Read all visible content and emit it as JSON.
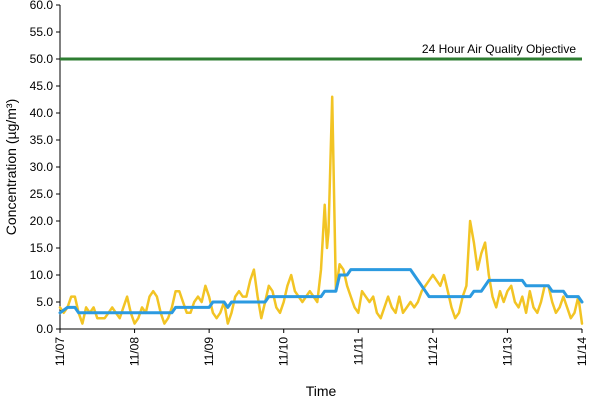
{
  "chart_data": {
    "type": "line",
    "xlabel": "Time",
    "ylabel": "Concentration (µg/m³)",
    "x_tick_labels": [
      "11/07",
      "11/08",
      "11/09",
      "11/10",
      "11/11",
      "11/12",
      "11/13",
      "11/14"
    ],
    "y_tick_labels": [
      "0.0",
      "5.0",
      "10.0",
      "15.0",
      "20.0",
      "25.0",
      "30.0",
      "35.0",
      "40.0",
      "45.0",
      "50.0",
      "55.0",
      "60.0"
    ],
    "xlim": [
      0,
      7
    ],
    "ylim": [
      0,
      60
    ],
    "grid": false,
    "objective": {
      "label": "24 Hour Air Quality Objective",
      "value": 50,
      "color": "#2e7d32"
    },
    "series": [
      {
        "color": "#f2c424",
        "points": [
          [
            0.0,
            4
          ],
          [
            0.05,
            3
          ],
          [
            0.1,
            4
          ],
          [
            0.15,
            6
          ],
          [
            0.2,
            6
          ],
          [
            0.25,
            3
          ],
          [
            0.3,
            1
          ],
          [
            0.35,
            4
          ],
          [
            0.4,
            3
          ],
          [
            0.45,
            4
          ],
          [
            0.5,
            2
          ],
          [
            0.55,
            2
          ],
          [
            0.6,
            2
          ],
          [
            0.65,
            3
          ],
          [
            0.7,
            4
          ],
          [
            0.75,
            3
          ],
          [
            0.8,
            2
          ],
          [
            0.85,
            4
          ],
          [
            0.9,
            6
          ],
          [
            0.95,
            3
          ],
          [
            1.0,
            1
          ],
          [
            1.05,
            2
          ],
          [
            1.1,
            4
          ],
          [
            1.15,
            3
          ],
          [
            1.2,
            6
          ],
          [
            1.25,
            7
          ],
          [
            1.3,
            6
          ],
          [
            1.35,
            3
          ],
          [
            1.4,
            1
          ],
          [
            1.45,
            2
          ],
          [
            1.5,
            4
          ],
          [
            1.55,
            7
          ],
          [
            1.6,
            7
          ],
          [
            1.65,
            5
          ],
          [
            1.7,
            3
          ],
          [
            1.75,
            3
          ],
          [
            1.8,
            5
          ],
          [
            1.85,
            6
          ],
          [
            1.9,
            5
          ],
          [
            1.95,
            8
          ],
          [
            2.0,
            6
          ],
          [
            2.05,
            3
          ],
          [
            2.1,
            2
          ],
          [
            2.15,
            3
          ],
          [
            2.2,
            5
          ],
          [
            2.25,
            1
          ],
          [
            2.3,
            3
          ],
          [
            2.35,
            6
          ],
          [
            2.4,
            7
          ],
          [
            2.45,
            6
          ],
          [
            2.5,
            6
          ],
          [
            2.55,
            9
          ],
          [
            2.6,
            11
          ],
          [
            2.65,
            6
          ],
          [
            2.7,
            2
          ],
          [
            2.75,
            5
          ],
          [
            2.8,
            8
          ],
          [
            2.85,
            7
          ],
          [
            2.9,
            4
          ],
          [
            2.95,
            3
          ],
          [
            3.0,
            5
          ],
          [
            3.05,
            8
          ],
          [
            3.1,
            10
          ],
          [
            3.15,
            7
          ],
          [
            3.2,
            6
          ],
          [
            3.25,
            5
          ],
          [
            3.3,
            6
          ],
          [
            3.35,
            7
          ],
          [
            3.4,
            6
          ],
          [
            3.45,
            5
          ],
          [
            3.5,
            11
          ],
          [
            3.55,
            23
          ],
          [
            3.58,
            15
          ],
          [
            3.6,
            18
          ],
          [
            3.65,
            43
          ],
          [
            3.7,
            7
          ],
          [
            3.75,
            12
          ],
          [
            3.8,
            11
          ],
          [
            3.85,
            8
          ],
          [
            3.9,
            6
          ],
          [
            3.95,
            4
          ],
          [
            4.0,
            3
          ],
          [
            4.05,
            7
          ],
          [
            4.1,
            6
          ],
          [
            4.15,
            5
          ],
          [
            4.2,
            6
          ],
          [
            4.25,
            3
          ],
          [
            4.3,
            2
          ],
          [
            4.35,
            4
          ],
          [
            4.4,
            6
          ],
          [
            4.45,
            4
          ],
          [
            4.5,
            3
          ],
          [
            4.55,
            6
          ],
          [
            4.6,
            3
          ],
          [
            4.65,
            4
          ],
          [
            4.7,
            5
          ],
          [
            4.75,
            4
          ],
          [
            4.8,
            5
          ],
          [
            4.85,
            7
          ],
          [
            4.9,
            8
          ],
          [
            4.95,
            9
          ],
          [
            5.0,
            10
          ],
          [
            5.05,
            9
          ],
          [
            5.1,
            8
          ],
          [
            5.15,
            10
          ],
          [
            5.2,
            7
          ],
          [
            5.25,
            4
          ],
          [
            5.3,
            2
          ],
          [
            5.35,
            3
          ],
          [
            5.4,
            6
          ],
          [
            5.45,
            8
          ],
          [
            5.5,
            20
          ],
          [
            5.55,
            16
          ],
          [
            5.6,
            11
          ],
          [
            5.65,
            14
          ],
          [
            5.7,
            16
          ],
          [
            5.75,
            10
          ],
          [
            5.8,
            6
          ],
          [
            5.85,
            4
          ],
          [
            5.9,
            7
          ],
          [
            5.95,
            5
          ],
          [
            6.0,
            7
          ],
          [
            6.05,
            8
          ],
          [
            6.1,
            5
          ],
          [
            6.15,
            4
          ],
          [
            6.2,
            6
          ],
          [
            6.25,
            3
          ],
          [
            6.3,
            7
          ],
          [
            6.35,
            4
          ],
          [
            6.4,
            3
          ],
          [
            6.45,
            5
          ],
          [
            6.5,
            8
          ],
          [
            6.55,
            8
          ],
          [
            6.6,
            5
          ],
          [
            6.65,
            3
          ],
          [
            6.7,
            4
          ],
          [
            6.75,
            6
          ],
          [
            6.8,
            4
          ],
          [
            6.85,
            2
          ],
          [
            6.9,
            3
          ],
          [
            6.95,
            6
          ],
          [
            7.0,
            1
          ]
        ]
      },
      {
        "color": "#2b9ae0",
        "points": [
          [
            0.0,
            3
          ],
          [
            0.1,
            4
          ],
          [
            0.2,
            4
          ],
          [
            0.25,
            3
          ],
          [
            1.0,
            3
          ],
          [
            1.5,
            3
          ],
          [
            1.55,
            4
          ],
          [
            2.0,
            4
          ],
          [
            2.05,
            5
          ],
          [
            2.2,
            5
          ],
          [
            2.25,
            4
          ],
          [
            2.3,
            5
          ],
          [
            2.75,
            5
          ],
          [
            2.8,
            6
          ],
          [
            3.5,
            6
          ],
          [
            3.55,
            7
          ],
          [
            3.7,
            7
          ],
          [
            3.75,
            10
          ],
          [
            3.85,
            10
          ],
          [
            3.9,
            11
          ],
          [
            4.7,
            11
          ],
          [
            4.75,
            10
          ],
          [
            4.85,
            8
          ],
          [
            4.9,
            7
          ],
          [
            4.95,
            6
          ],
          [
            5.5,
            6
          ],
          [
            5.55,
            7
          ],
          [
            5.65,
            7
          ],
          [
            5.7,
            8
          ],
          [
            5.75,
            9
          ],
          [
            6.2,
            9
          ],
          [
            6.25,
            8
          ],
          [
            6.55,
            8
          ],
          [
            6.6,
            7
          ],
          [
            6.75,
            7
          ],
          [
            6.8,
            6
          ],
          [
            6.95,
            6
          ],
          [
            7.0,
            5
          ]
        ]
      }
    ]
  }
}
